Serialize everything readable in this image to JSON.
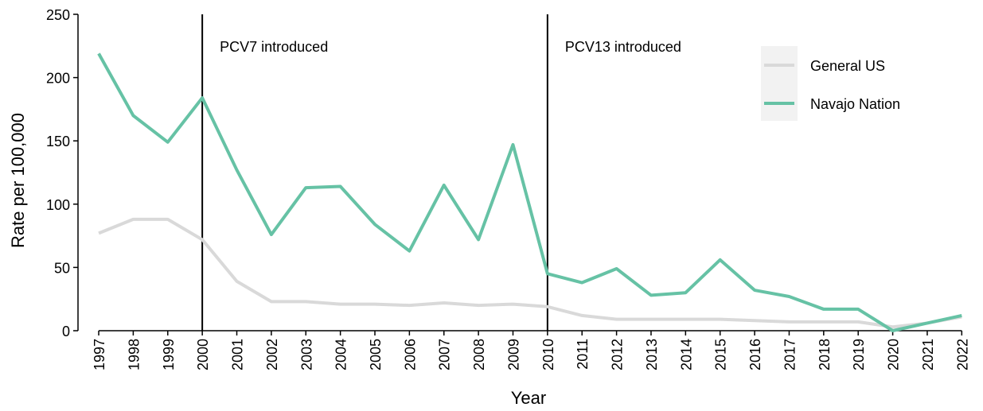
{
  "chart_data": {
    "type": "line",
    "xlabel": "Year",
    "ylabel": "Rate per 100,000",
    "x": [
      1997,
      1998,
      1999,
      2000,
      2001,
      2002,
      2003,
      2004,
      2005,
      2006,
      2007,
      2008,
      2009,
      2010,
      2011,
      2012,
      2013,
      2014,
      2015,
      2016,
      2017,
      2018,
      2019,
      2020,
      2021,
      2022
    ],
    "series": [
      {
        "name": "General US",
        "color": "#d9d9d9",
        "values": [
          77,
          88,
          88,
          72,
          39,
          23,
          23,
          21,
          21,
          20,
          22,
          20,
          21,
          19,
          12,
          9,
          9,
          9,
          9,
          8,
          7,
          7,
          7,
          3,
          6,
          11
        ]
      },
      {
        "name": "Navajo Nation",
        "color": "#66c2a5",
        "values": [
          219,
          170,
          149,
          184,
          127,
          76,
          113,
          114,
          84,
          63,
          115,
          72,
          147,
          45,
          38,
          49,
          28,
          30,
          56,
          32,
          27,
          17,
          17,
          0,
          6,
          12
        ]
      }
    ],
    "annotations": [
      {
        "x": 2000,
        "text": "PCV7 introduced"
      },
      {
        "x": 2010,
        "text": "PCV13 introduced"
      }
    ],
    "xlim": [
      1996.4,
      2022.5
    ],
    "xticks": [
      1997,
      1998,
      1999,
      2000,
      2001,
      2002,
      2003,
      2004,
      2005,
      2006,
      2007,
      2008,
      2009,
      2010,
      2011,
      2012,
      2013,
      2014,
      2015,
      2016,
      2017,
      2018,
      2019,
      2020,
      2021,
      2022
    ],
    "ylim": [
      0,
      250
    ],
    "yticks": [
      0,
      50,
      100,
      150,
      200,
      250
    ],
    "legend": "top-right"
  }
}
